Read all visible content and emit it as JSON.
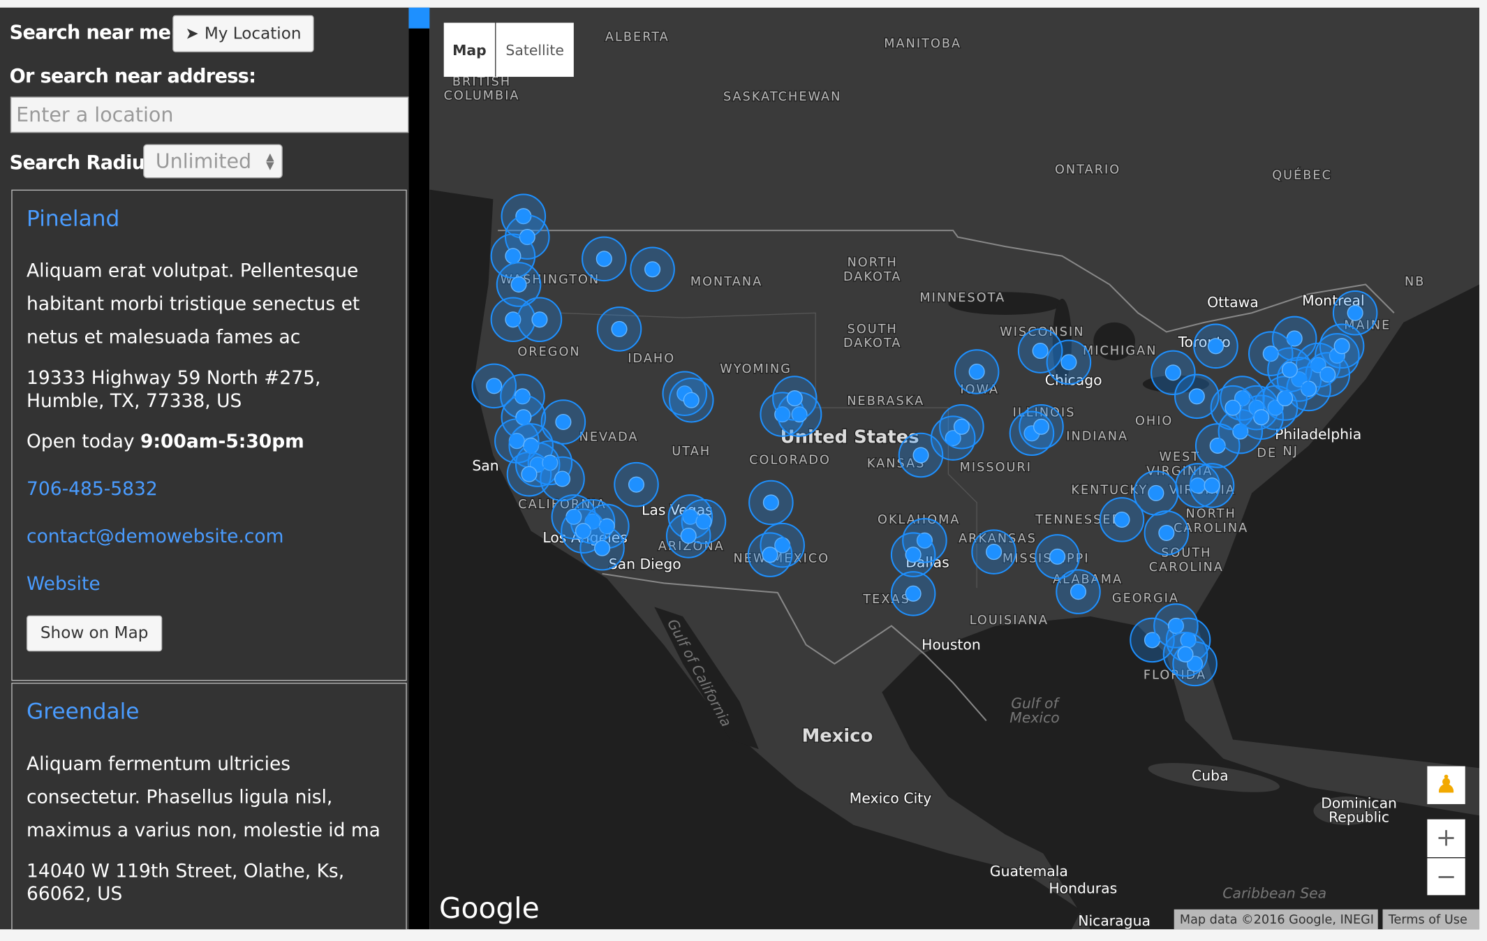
{
  "sidebar": {
    "search_near_me": "Search near me:",
    "my_location": "My Location",
    "search_address": "Or search near address:",
    "address_placeholder": "Enter a location",
    "radius_label": "Search Radius",
    "radius_value": "Unlimited"
  },
  "stores": [
    {
      "name": "Pineland",
      "description": "Aliquam erat volutpat. Pellentesque habitant morbi tristique senectus et netus et malesuada fames ac",
      "address": "19333 Highway 59 North #275, Humble, TX, 77338, US",
      "hours_prefix": "Open today",
      "hours": "9:00am-5:30pm",
      "phone": "706-485-5832",
      "email": "contact@demowebsite.com",
      "website": "Website",
      "button": "Show on Map"
    },
    {
      "name": "Greendale",
      "description": "Aliquam fermentum ultricies consectetur. Phasellus ligula nisl, maximus a varius non, molestie id ma",
      "address": "14040 W 119th Street, Olathe, Ks, 66062, US"
    }
  ],
  "map": {
    "controls": [
      "Map",
      "Satellite"
    ],
    "labels": [
      "ALBERTA",
      "MANITOBA",
      "BRITISH",
      "COLUMBIA",
      "SASKATCHEWAN",
      "ONTARIO",
      "QUÉBEC",
      "NORTH",
      "DAKOTA",
      "MONTANA",
      "WASHINGTON",
      "MINNESOTA",
      "OREGON",
      "IDAHO",
      "SOUTH",
      "DAKOTA",
      "WISCONSIN",
      "MICHIGAN",
      "WYOMING",
      "IOWA",
      "Chicago",
      "NEBRASKA",
      "ILLINOIS",
      "NEVADA",
      "United States",
      "OHIO",
      "INDIANA",
      "UTAH",
      "COLORADO",
      "KANSAS",
      "MISSOURI",
      "San",
      "KENTUCKY",
      "WEST",
      "VIRGINIA",
      "VIRGINIA",
      "CALIFORNIA",
      "Las Vegas",
      "OKLAHOMA",
      "TENNESSEE",
      "NORTH",
      "CAROLINA",
      "ARIZONA",
      "NEW MEXICO",
      "ARKANSAS",
      "MISSISSIPPI",
      "Los Angeles",
      "San Diego",
      "Dallas",
      "SOUTH",
      "CAROLINA",
      "ALABAMA",
      "GEORGIA",
      "TEXAS",
      "LOUISIANA",
      "Houston",
      "FLORIDA",
      "Gulf of",
      "Mexico",
      "Mexico",
      "Cuba",
      "Mexico City",
      "Dominican",
      "Republic",
      "Guatemala",
      "Honduras",
      "Nicaragua",
      "Caribbean Sea",
      "Gulf of California",
      "Ottawa",
      "Montreal",
      "Toronto",
      "MAINE",
      "NB",
      "Philadelphia",
      "NJ",
      "DE"
    ],
    "logo": "Google",
    "attribution": "Map data ©2016 Google, INEGI",
    "terms": "Terms of Use",
    "zoom_in": "+",
    "zoom_out": "−"
  }
}
